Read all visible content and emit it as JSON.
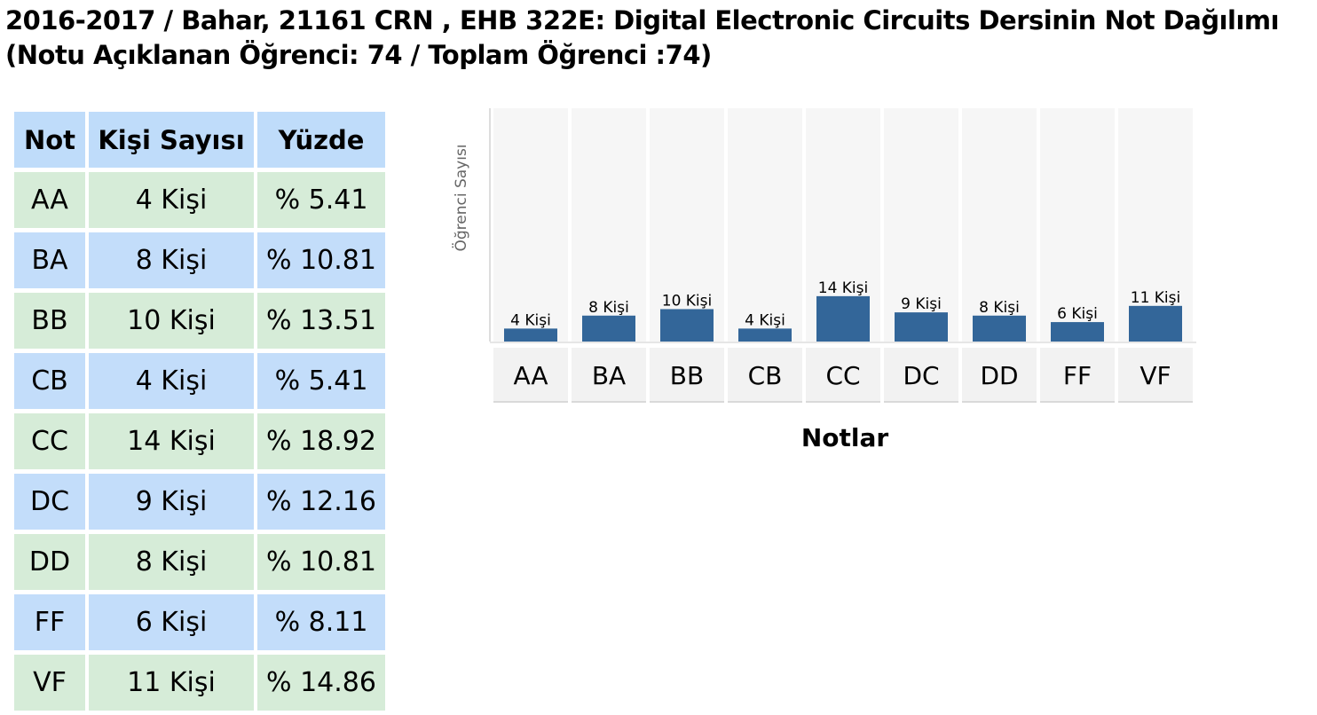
{
  "page": {
    "title_line1": "2016-2017 / Bahar, 21161 CRN , EHB 322E: Digital Electronic Circuits Dersinin Not Dağılımı",
    "title_line2": "(Notu Açıklanan Öğrenci: 74 / Toplam Öğrenci :74)"
  },
  "table": {
    "headers": [
      "Not",
      "Kişi Sayısı",
      "Yüzde"
    ],
    "rows": [
      {
        "grade": "AA",
        "count": "4 Kişi",
        "percent": "% 5.41"
      },
      {
        "grade": "BA",
        "count": "8 Kişi",
        "percent": "% 10.81"
      },
      {
        "grade": "BB",
        "count": "10 Kişi",
        "percent": "% 13.51"
      },
      {
        "grade": "CB",
        "count": "4 Kişi",
        "percent": "% 5.41"
      },
      {
        "grade": "CC",
        "count": "14 Kişi",
        "percent": "% 18.92"
      },
      {
        "grade": "DC",
        "count": "9 Kişi",
        "percent": "% 12.16"
      },
      {
        "grade": "DD",
        "count": "8 Kişi",
        "percent": "% 10.81"
      },
      {
        "grade": "FF",
        "count": "6 Kişi",
        "percent": "% 8.11"
      },
      {
        "grade": "VF",
        "count": "11 Kişi",
        "percent": "% 14.86"
      }
    ]
  },
  "chart_data": {
    "type": "bar",
    "categories": [
      "AA",
      "BA",
      "BB",
      "CB",
      "CC",
      "DC",
      "DD",
      "FF",
      "VF"
    ],
    "values": [
      4,
      8,
      10,
      4,
      14,
      9,
      8,
      6,
      11
    ],
    "data_labels": [
      "4 Kişi",
      "8 Kişi",
      "10 Kişi",
      "4 Kişi",
      "14 Kişi",
      "9 Kişi",
      "8 Kişi",
      "6 Kişi",
      "11 Kişi"
    ],
    "xlabel": "Notlar",
    "ylabel": "Öğrenci Sayısı",
    "ylim": [
      0,
      72
    ],
    "grid": false,
    "bar_color": "#336699",
    "plot_background": "#f6f6f6",
    "category_background": "#f2f2f2"
  }
}
